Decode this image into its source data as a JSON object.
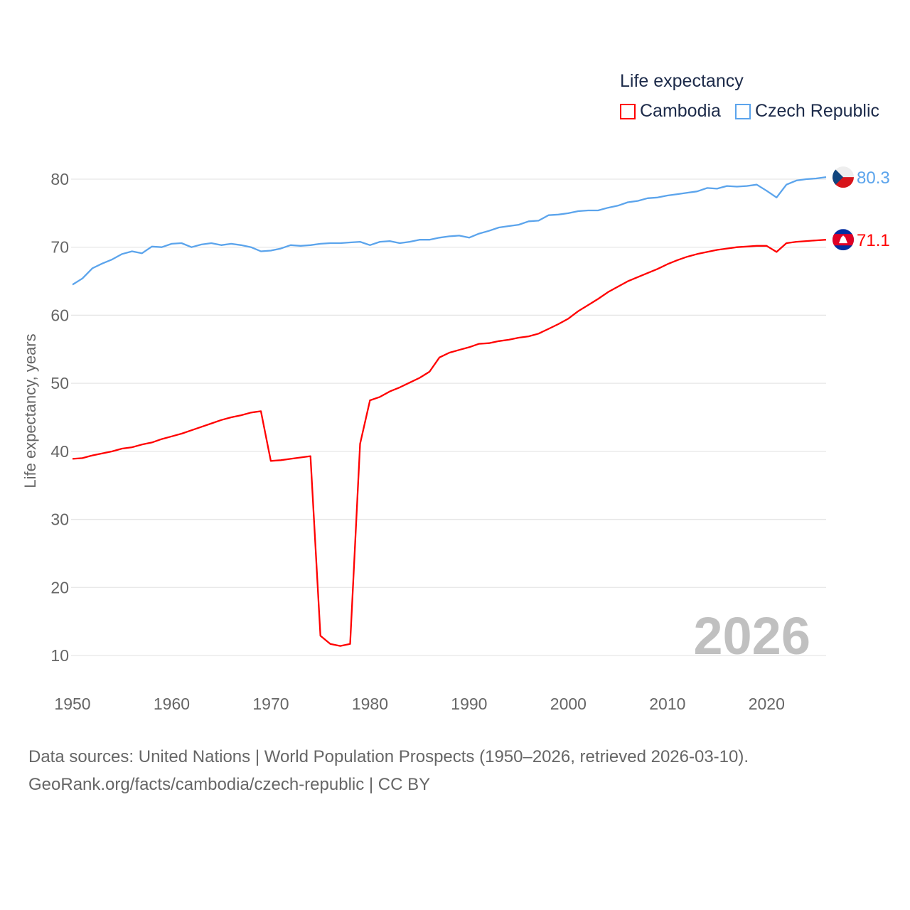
{
  "chart_data": {
    "type": "line",
    "legend_title": "Life expectancy",
    "legend_placement": "top-right",
    "ylabel": "Life expectancy, years",
    "xlabel": "",
    "ylim": [
      10,
      80
    ],
    "xlim": [
      1950,
      2026
    ],
    "yticks": [
      10,
      20,
      30,
      40,
      50,
      60,
      70,
      80
    ],
    "xticks": [
      1950,
      1960,
      1970,
      1980,
      1990,
      2000,
      2010,
      2020
    ],
    "grid": true,
    "year_watermark": "2026",
    "x": [
      1950,
      1951,
      1952,
      1953,
      1954,
      1955,
      1956,
      1957,
      1958,
      1959,
      1960,
      1961,
      1962,
      1963,
      1964,
      1965,
      1966,
      1967,
      1968,
      1969,
      1970,
      1971,
      1972,
      1973,
      1974,
      1975,
      1976,
      1977,
      1978,
      1979,
      1980,
      1981,
      1982,
      1983,
      1984,
      1985,
      1986,
      1987,
      1988,
      1989,
      1990,
      1991,
      1992,
      1993,
      1994,
      1995,
      1996,
      1997,
      1998,
      1999,
      2000,
      2001,
      2002,
      2003,
      2004,
      2005,
      2006,
      2007,
      2008,
      2009,
      2010,
      2011,
      2012,
      2013,
      2014,
      2015,
      2016,
      2017,
      2018,
      2019,
      2020,
      2021,
      2022,
      2023,
      2024,
      2025,
      2026
    ],
    "series": [
      {
        "name": "Cambodia",
        "color": "#ff0000",
        "end_label": "71.1",
        "values": [
          38.9,
          39.0,
          39.4,
          39.7,
          40.0,
          40.4,
          40.6,
          41.0,
          41.3,
          41.8,
          42.2,
          42.6,
          43.1,
          43.6,
          44.1,
          44.6,
          45.0,
          45.3,
          45.7,
          45.9,
          38.6,
          38.7,
          38.9,
          39.1,
          39.3,
          12.9,
          11.7,
          11.4,
          11.7,
          41.1,
          47.5,
          48.0,
          48.8,
          49.4,
          50.1,
          50.8,
          51.7,
          53.8,
          54.5,
          54.9,
          55.3,
          55.8,
          55.9,
          56.2,
          56.4,
          56.7,
          56.9,
          57.3,
          58.0,
          58.7,
          59.5,
          60.6,
          61.5,
          62.4,
          63.4,
          64.2,
          65.0,
          65.6,
          66.2,
          66.8,
          67.5,
          68.1,
          68.6,
          69.0,
          69.3,
          69.6,
          69.8,
          70.0,
          70.1,
          70.2,
          70.2,
          69.3,
          70.6,
          70.8,
          70.9,
          71.0,
          71.1
        ]
      },
      {
        "name": "Czech Republic",
        "color": "#5ba4ec",
        "end_label": "80.3",
        "values": [
          64.5,
          65.4,
          66.9,
          67.6,
          68.2,
          69.0,
          69.4,
          69.1,
          70.1,
          70.0,
          70.5,
          70.6,
          70.0,
          70.4,
          70.6,
          70.3,
          70.5,
          70.3,
          70.0,
          69.4,
          69.5,
          69.8,
          70.3,
          70.2,
          70.3,
          70.5,
          70.6,
          70.6,
          70.7,
          70.8,
          70.3,
          70.8,
          70.9,
          70.6,
          70.8,
          71.1,
          71.1,
          71.4,
          71.6,
          71.7,
          71.4,
          72.0,
          72.4,
          72.9,
          73.1,
          73.3,
          73.8,
          73.9,
          74.7,
          74.8,
          75.0,
          75.3,
          75.4,
          75.4,
          75.8,
          76.1,
          76.6,
          76.8,
          77.2,
          77.3,
          77.6,
          77.8,
          78.0,
          78.2,
          78.7,
          78.6,
          79.0,
          78.9,
          79.0,
          79.2,
          78.3,
          77.3,
          79.2,
          79.8,
          80.0,
          80.1,
          80.3
        ]
      }
    ]
  },
  "footer": {
    "source_line": "Data sources: United Nations | World Population Prospects (1950–2026, retrieved 2026-03-10).",
    "url_line": "GeoRank.org/facts/cambodia/czech-republic | CC BY"
  }
}
